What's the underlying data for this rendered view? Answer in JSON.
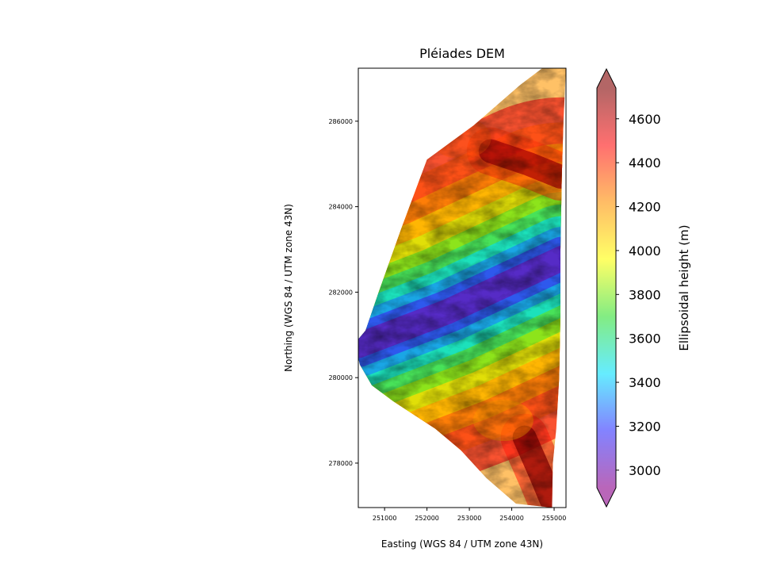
{
  "chart_data": {
    "type": "heatmap",
    "title": "Pléiades DEM",
    "xlabel": "Easting (WGS 84 / UTM zone 43N)",
    "ylabel": "Northing (WGS 84 / UTM zone 43N)",
    "xlim": [
      250380,
      255280
    ],
    "ylim": [
      276960,
      287240
    ],
    "x_ticks": [
      251000,
      252000,
      253000,
      254000,
      255000
    ],
    "y_ticks": [
      278000,
      280000,
      282000,
      284000,
      286000
    ],
    "colorbar": {
      "label": "Ellipsoidal height (m)",
      "range": [
        2920,
        4740
      ],
      "ticks": [
        3000,
        3200,
        3400,
        3600,
        3800,
        4000,
        4200,
        4400,
        4600
      ],
      "colormap": [
        "#8b008b",
        "#3030ff",
        "#00e0ff",
        "#30e030",
        "#ffff00",
        "#ff9000",
        "#ff1010",
        "#800000"
      ],
      "alpha": 0.6,
      "extend": "both"
    },
    "footprint": [
      [
        250380,
        280460
      ],
      [
        250420,
        280300
      ],
      [
        250700,
        279820
      ],
      [
        251200,
        279450
      ],
      [
        252200,
        278800
      ],
      [
        252800,
        278300
      ],
      [
        253400,
        277650
      ],
      [
        254100,
        277050
      ],
      [
        254950,
        276960
      ],
      [
        254970,
        278000
      ],
      [
        255050,
        278800
      ],
      [
        255120,
        280000
      ],
      [
        255150,
        281500
      ],
      [
        255150,
        283000
      ],
      [
        255180,
        284700
      ],
      [
        255220,
        286000
      ],
      [
        255280,
        287240
      ],
      [
        254720,
        287240
      ],
      [
        254200,
        286850
      ],
      [
        253100,
        285900
      ],
      [
        252000,
        285100
      ],
      [
        251400,
        283500
      ],
      [
        250860,
        282000
      ],
      [
        250550,
        281100
      ],
      [
        250380,
        280900
      ]
    ],
    "valley_axis": [
      [
        250380,
        280750
      ],
      [
        252500,
        281550
      ],
      [
        255200,
        282800
      ]
    ],
    "features": [
      {
        "type": "ridge",
        "points": [
          [
            253500,
            285300
          ],
          [
            254400,
            285000
          ],
          [
            255150,
            284700
          ]
        ],
        "height": 4650
      },
      {
        "type": "ridge",
        "points": [
          [
            254300,
            278600
          ],
          [
            254700,
            277700
          ],
          [
            254950,
            277100
          ]
        ],
        "height": 4700
      },
      {
        "type": "peak",
        "position": [
          252800,
          285600
        ],
        "height": 4350
      },
      {
        "type": "peak",
        "position": [
          253800,
          279000
        ],
        "height": 4200
      }
    ]
  }
}
